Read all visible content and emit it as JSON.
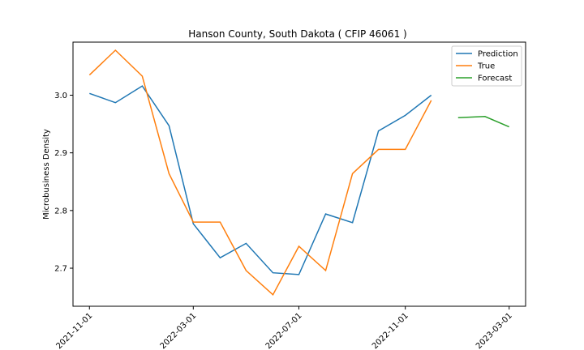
{
  "chart_data": {
    "type": "line",
    "title": "Hanson County, South Dakota ( CFIP 46061 )",
    "xlabel": "",
    "ylabel": "Microbusiness Density",
    "ylim": [
      2.634,
      3.092
    ],
    "yticks": [
      2.7,
      2.8,
      2.9,
      3.0
    ],
    "ytick_labels": [
      "2.7",
      "2.8",
      "2.9",
      "3.0"
    ],
    "xticks": [
      "2021-11-01",
      "2022-03-01",
      "2022-07-01",
      "2022-11-01",
      "2023-03-01"
    ],
    "xlim": [
      "2021-10-13",
      "2023-03-20"
    ],
    "grid": false,
    "legend_position": "top-right",
    "series": [
      {
        "name": "Prediction",
        "color": "#1f77b4",
        "x": [
          "2021-11-01",
          "2021-12-01",
          "2022-01-01",
          "2022-02-01",
          "2022-03-01",
          "2022-04-01",
          "2022-05-01",
          "2022-06-01",
          "2022-07-01",
          "2022-08-01",
          "2022-09-01",
          "2022-10-01",
          "2022-11-01",
          "2022-12-01"
        ],
        "values": [
          3.003,
          2.987,
          3.016,
          2.947,
          2.777,
          2.718,
          2.743,
          2.692,
          2.689,
          2.794,
          2.779,
          2.938,
          2.965,
          3.0
        ]
      },
      {
        "name": "True",
        "color": "#ff7f0e",
        "x": [
          "2021-11-01",
          "2021-12-01",
          "2022-01-01",
          "2022-02-01",
          "2022-03-01",
          "2022-04-01",
          "2022-05-01",
          "2022-06-01",
          "2022-07-01",
          "2022-08-01",
          "2022-09-01",
          "2022-10-01",
          "2022-11-01",
          "2022-12-01"
        ],
        "values": [
          3.035,
          3.078,
          3.033,
          2.864,
          2.78,
          2.78,
          2.696,
          2.654,
          2.738,
          2.696,
          2.864,
          2.906,
          2.906,
          2.991
        ]
      },
      {
        "name": "Forecast",
        "color": "#2ca02c",
        "x": [
          "2023-01-01",
          "2023-02-01",
          "2023-03-01"
        ],
        "values": [
          2.961,
          2.963,
          2.945
        ]
      }
    ]
  }
}
